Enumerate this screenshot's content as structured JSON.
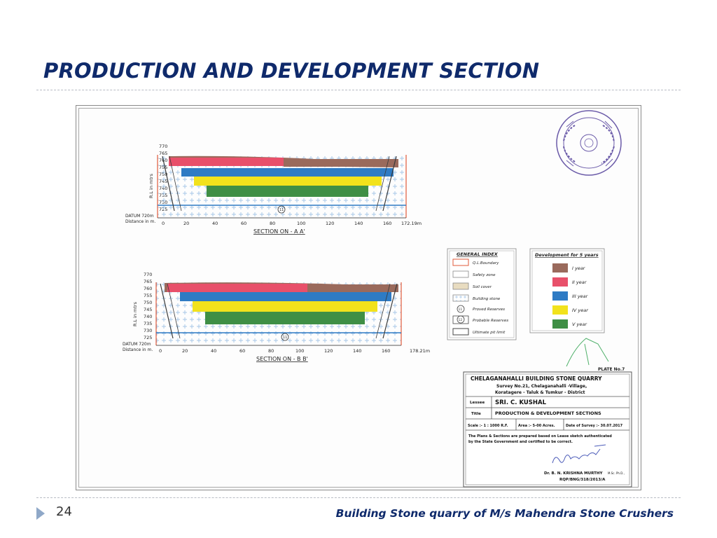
{
  "slide": {
    "title": "PRODUCTION AND DEVELOPMENT SECTION",
    "page_number": "24",
    "footer": "Building Stone quarry of  M/s Mahendra  Stone Crushers"
  },
  "sections": [
    {
      "caption": "SECTION ON - A A'",
      "end_label": "172.19m",
      "rl_ticks": [
        "770",
        "765",
        "760",
        "755",
        "750",
        "745",
        "740",
        "735",
        "730",
        "725"
      ],
      "distance_ticks": [
        "0",
        "20",
        "40",
        "60",
        "80",
        "100",
        "120",
        "140",
        "160"
      ],
      "y_axis_label": "R.L in mtrs",
      "datum": "DATUM 720m",
      "distance_label": "Distance in m.",
      "reserve_marker": "11"
    },
    {
      "caption": "SECTION ON - B B'",
      "end_label": "178.21m",
      "rl_ticks": [
        "770",
        "765",
        "760",
        "755",
        "750",
        "745",
        "740",
        "735",
        "730",
        "725"
      ],
      "distance_ticks": [
        "0",
        "20",
        "40",
        "60",
        "80",
        "100",
        "120",
        "140",
        "160"
      ],
      "y_axis_label": "R.L in mtrs",
      "datum": "DATUM 720m",
      "distance_label": "Distance in m.",
      "reserve_marker": "11"
    }
  ],
  "general_index": {
    "title": "GENERAL INDEX",
    "items": [
      "Q.L.Boundary",
      "Safety zone",
      "Soil cover",
      "Building stone",
      "Proved Reserves",
      "Probable Reserves",
      "Ultimate pit limit"
    ],
    "marker_proved": "11",
    "marker_probable": "12"
  },
  "development": {
    "title": "Development for 5 years",
    "years": [
      {
        "label": "I year",
        "color": "#9a6a5c"
      },
      {
        "label": "II year",
        "color": "#e8506a"
      },
      {
        "label": "III year",
        "color": "#2e7bc4"
      },
      {
        "label": "IV year",
        "color": "#f2e21c"
      },
      {
        "label": "V year",
        "color": "#3f8f45"
      }
    ]
  },
  "stamp_text": "ರಾಜ್ಯ ಸರ್ಕಾರ",
  "plate": {
    "plate_no": "PLATE No.7",
    "quarry_name": "CHELAGANAHALLI BUILDING STONE QUARRY",
    "survey_line1": "Survey No.21, Chelaganahalli -Village,",
    "survey_line2": "Koratagere - Taluk & Tumkur - District",
    "lessee_label": "Lessee",
    "lessee_value": "SRI. C. KUSHAL",
    "title_label": "Title",
    "title_value": "PRODUCTION & DEVELOPMENT SECTIONS",
    "scale": "Scale :- 1 : 1000 R.F.",
    "area": "Area :- 5-00 Acres.",
    "survey_date": "Date of Survey :- 30.07.2017",
    "note_line1": "The Plans & Sections are prepared based on Lease sketch authenticated",
    "note_line2": "by the State Government and certified to be correct.",
    "signatory": "Dr. B. N. KRISHNA MURTHY",
    "signatory_quals": "M.Sc. Ph.D.,",
    "rqp": "RQP/BNG/318/2013/A"
  },
  "colors": {
    "title": "#0f2a6b",
    "soil": "#9a6a5c",
    "year1": "#9a6a5c",
    "year2": "#e8506a",
    "year3": "#2e7bc4",
    "year4": "#f2e21c",
    "year5": "#3f8f45",
    "building_stone_cross": "#a8c8e8",
    "boundary": "#e05a3a",
    "ultimate_pit": "#3a3a3a"
  }
}
